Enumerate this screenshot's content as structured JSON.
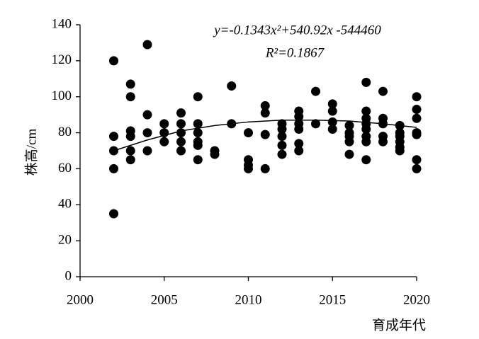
{
  "chart_data": {
    "type": "scatter",
    "ylabel": "株高/cm",
    "xlabel": "育成年代",
    "annotations": [
      "y=-0.1343x²+540.92x -544460",
      "R²=0.1867"
    ],
    "x": [
      2002,
      2002,
      2002,
      2002,
      2002,
      2003,
      2003,
      2003,
      2003,
      2003,
      2003,
      2004,
      2004,
      2004,
      2004,
      2005,
      2005,
      2005,
      2006,
      2006,
      2006,
      2006,
      2006,
      2007,
      2007,
      2007,
      2007,
      2007,
      2007,
      2008,
      2008,
      2009,
      2009,
      2010,
      2010,
      2010,
      2010,
      2011,
      2011,
      2011,
      2011,
      2012,
      2012,
      2012,
      2012,
      2012,
      2013,
      2013,
      2013,
      2013,
      2013,
      2013,
      2014,
      2014,
      2015,
      2015,
      2015,
      2015,
      2016,
      2016,
      2016,
      2016,
      2016,
      2017,
      2017,
      2017,
      2017,
      2017,
      2017,
      2017,
      2017,
      2018,
      2018,
      2018,
      2018,
      2018,
      2019,
      2019,
      2019,
      2019,
      2019,
      2019,
      2020,
      2020,
      2020,
      2020,
      2020,
      2020,
      2020
    ],
    "values": [
      120,
      78,
      70,
      60,
      35,
      107,
      100,
      81,
      78,
      70,
      65,
      129,
      90,
      80,
      70,
      85,
      80,
      75,
      91,
      85,
      80,
      75,
      70,
      100,
      85,
      80,
      75,
      73,
      65,
      70,
      68,
      106,
      85,
      80,
      65,
      62,
      60,
      95,
      91,
      79,
      60,
      85,
      82,
      78,
      73,
      68,
      92,
      89,
      85,
      82,
      74,
      70,
      103,
      85,
      96,
      92,
      86,
      82,
      84,
      80,
      78,
      75,
      68,
      108,
      92,
      88,
      85,
      82,
      78,
      75,
      65,
      103,
      88,
      85,
      78,
      75,
      84,
      80,
      78,
      75,
      72,
      70,
      100,
      93,
      88,
      80,
      79,
      65,
      60
    ],
    "color": "#000000",
    "trendline": {
      "x": [
        2002,
        2004,
        2006,
        2008,
        2010,
        2012,
        2014,
        2016,
        2018,
        2020
      ],
      "values": [
        70,
        76,
        81,
        84,
        86,
        87,
        87,
        86.5,
        85,
        83
      ],
      "color": "#000000"
    },
    "xlim": [
      2000,
      2020
    ],
    "xticks": [
      2000,
      2005,
      2010,
      2015,
      2020
    ],
    "ylim": [
      0,
      140
    ],
    "yticks": [
      0,
      20,
      40,
      60,
      80,
      100,
      120,
      140
    ]
  }
}
